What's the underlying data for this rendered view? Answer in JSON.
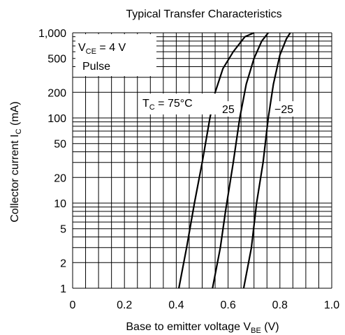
{
  "chart_data": {
    "type": "line",
    "title": "Typical Transfer Characteristics",
    "xlabel": {
      "main": "Base to emitter voltage  V",
      "sub": "BE",
      "unit": "  (V)"
    },
    "ylabel": {
      "main": "Collector current  I",
      "sub": "C",
      "unit": "  (mA)"
    },
    "x_scale": "linear",
    "y_scale": "log",
    "xlim": [
      0,
      1.0
    ],
    "ylim": [
      1,
      1000
    ],
    "x_ticks": [
      0,
      0.2,
      0.4,
      0.6,
      0.8,
      1.0
    ],
    "x_tick_labels": [
      "0",
      "0.2",
      "0.4",
      "0.6",
      "0.8",
      "1.0"
    ],
    "y_ticks": [
      1,
      2,
      5,
      10,
      20,
      50,
      100,
      200,
      500,
      1000
    ],
    "y_tick_labels": [
      "1",
      "2",
      "5",
      "10",
      "20",
      "50",
      "100",
      "200",
      "500",
      "1,000"
    ],
    "grid": true,
    "conditions": {
      "vce_prefix": "V",
      "vce_sub": "CE",
      "vce_value": " = 4 V",
      "pulse": "Pulse"
    },
    "series": [
      {
        "name": "75",
        "label_prefix": "T",
        "label_sub": "C",
        "label_suffix": " = 75°C",
        "points": [
          [
            0.41,
            1
          ],
          [
            0.44,
            3
          ],
          [
            0.47,
            10
          ],
          [
            0.5,
            30
          ],
          [
            0.53,
            100
          ],
          [
            0.55,
            200
          ],
          [
            0.58,
            380
          ],
          [
            0.62,
            600
          ],
          [
            0.665,
            900
          ],
          [
            0.7,
            1000
          ]
        ]
      },
      {
        "name": "25",
        "label": "25",
        "points": [
          [
            0.54,
            1
          ],
          [
            0.57,
            3
          ],
          [
            0.59,
            8
          ],
          [
            0.62,
            30
          ],
          [
            0.645,
            100
          ],
          [
            0.67,
            250
          ],
          [
            0.7,
            500
          ],
          [
            0.73,
            800
          ],
          [
            0.755,
            1000
          ]
        ]
      },
      {
        "name": "−25",
        "label": "−25",
        "points": [
          [
            0.66,
            1
          ],
          [
            0.69,
            3
          ],
          [
            0.71,
            10
          ],
          [
            0.735,
            30
          ],
          [
            0.755,
            100
          ],
          [
            0.775,
            250
          ],
          [
            0.8,
            550
          ],
          [
            0.825,
            850
          ],
          [
            0.84,
            1000
          ]
        ]
      }
    ]
  }
}
